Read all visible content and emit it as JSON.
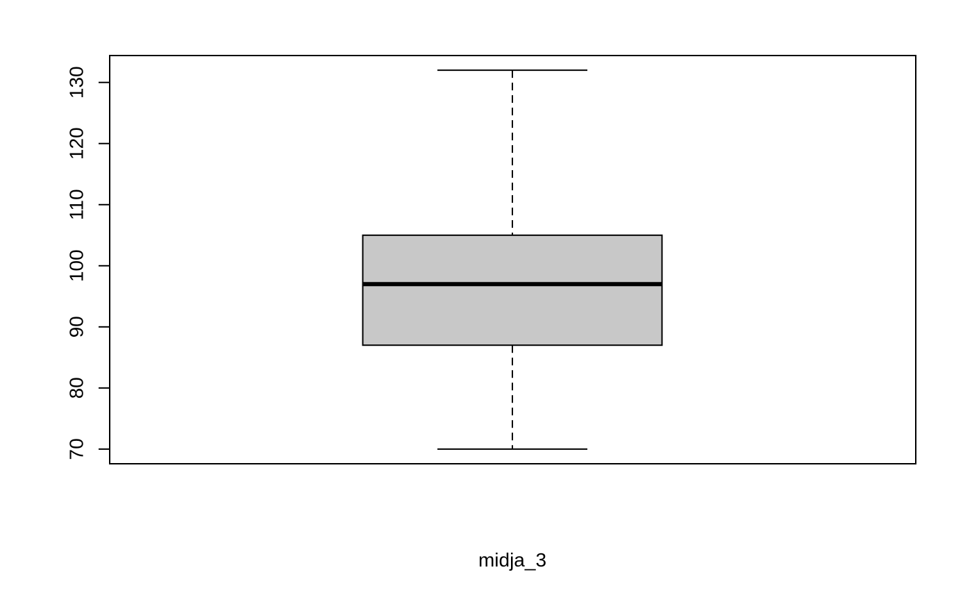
{
  "chart_data": {
    "type": "boxplot",
    "title": "",
    "xlabel": "midja_3",
    "ylabel": "",
    "ylim": [
      67.6,
      134.4
    ],
    "yticks": [
      70,
      80,
      90,
      100,
      110,
      120,
      130
    ],
    "grid": false,
    "series": [
      {
        "min": 70,
        "q1": 87,
        "median": 97,
        "q3": 105,
        "max": 132
      }
    ],
    "colors": {
      "box_fill": "#c8c8c8",
      "stroke": "#000000"
    }
  }
}
